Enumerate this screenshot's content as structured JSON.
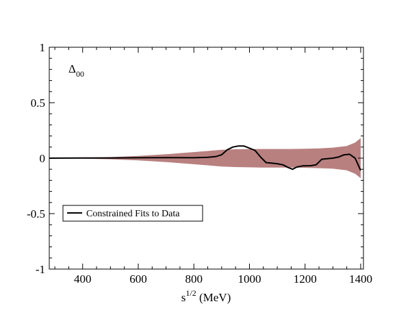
{
  "chart_data": {
    "type": "line",
    "annotation": {
      "main": "Δ",
      "sub": "00"
    },
    "xlabel": {
      "main": "s",
      "sup": "1/2",
      "rest": " (MeV)"
    },
    "ylabel": "",
    "xlim": [
      280,
      1410
    ],
    "ylim": [
      -1,
      1
    ],
    "xticks": [
      400,
      600,
      800,
      1000,
      1200,
      1400
    ],
    "xtick_labels": [
      "400",
      "600",
      "800",
      "1000",
      "1200",
      "1400"
    ],
    "yticks": [
      -1,
      -0.5,
      0,
      0.5,
      1
    ],
    "ytick_labels": [
      "-1",
      "-0.5",
      "0",
      "0.5",
      "1"
    ],
    "grid": false,
    "legend": {
      "position": "lower-left",
      "entries": [
        "Constrained Fits to Data"
      ]
    },
    "band": {
      "color": "#b98080",
      "x": [
        280,
        400,
        500,
        600,
        700,
        800,
        850,
        900,
        950,
        1000,
        1050,
        1100,
        1150,
        1200,
        1250,
        1300,
        1350,
        1380,
        1400
      ],
      "upper": [
        0.002,
        0.005,
        0.01,
        0.02,
        0.035,
        0.055,
        0.065,
        0.075,
        0.08,
        0.082,
        0.083,
        0.083,
        0.083,
        0.085,
        0.088,
        0.095,
        0.11,
        0.14,
        0.18
      ],
      "lower": [
        -0.002,
        -0.005,
        -0.01,
        -0.02,
        -0.035,
        -0.055,
        -0.065,
        -0.075,
        -0.08,
        -0.083,
        -0.085,
        -0.085,
        -0.085,
        -0.087,
        -0.09,
        -0.095,
        -0.11,
        -0.14,
        -0.18
      ]
    },
    "series": [
      {
        "name": "Constrained Fits to Data",
        "color": "#000000",
        "x": [
          280,
          400,
          500,
          600,
          700,
          800,
          850,
          880,
          900,
          920,
          940,
          960,
          980,
          1000,
          1020,
          1040,
          1060,
          1080,
          1100,
          1120,
          1140,
          1155,
          1170,
          1190,
          1220,
          1240,
          1260,
          1280,
          1300,
          1320,
          1340,
          1360,
          1380,
          1400
        ],
        "y": [
          0,
          0.001,
          0.002,
          0.004,
          0.005,
          0.004,
          0.008,
          0.015,
          0.03,
          0.075,
          0.1,
          0.11,
          0.11,
          0.09,
          0.07,
          0.01,
          -0.04,
          -0.045,
          -0.05,
          -0.06,
          -0.085,
          -0.1,
          -0.08,
          -0.07,
          -0.068,
          -0.06,
          -0.01,
          -0.005,
          0,
          0.01,
          0.03,
          0.035,
          0,
          -0.11
        ]
      }
    ]
  }
}
